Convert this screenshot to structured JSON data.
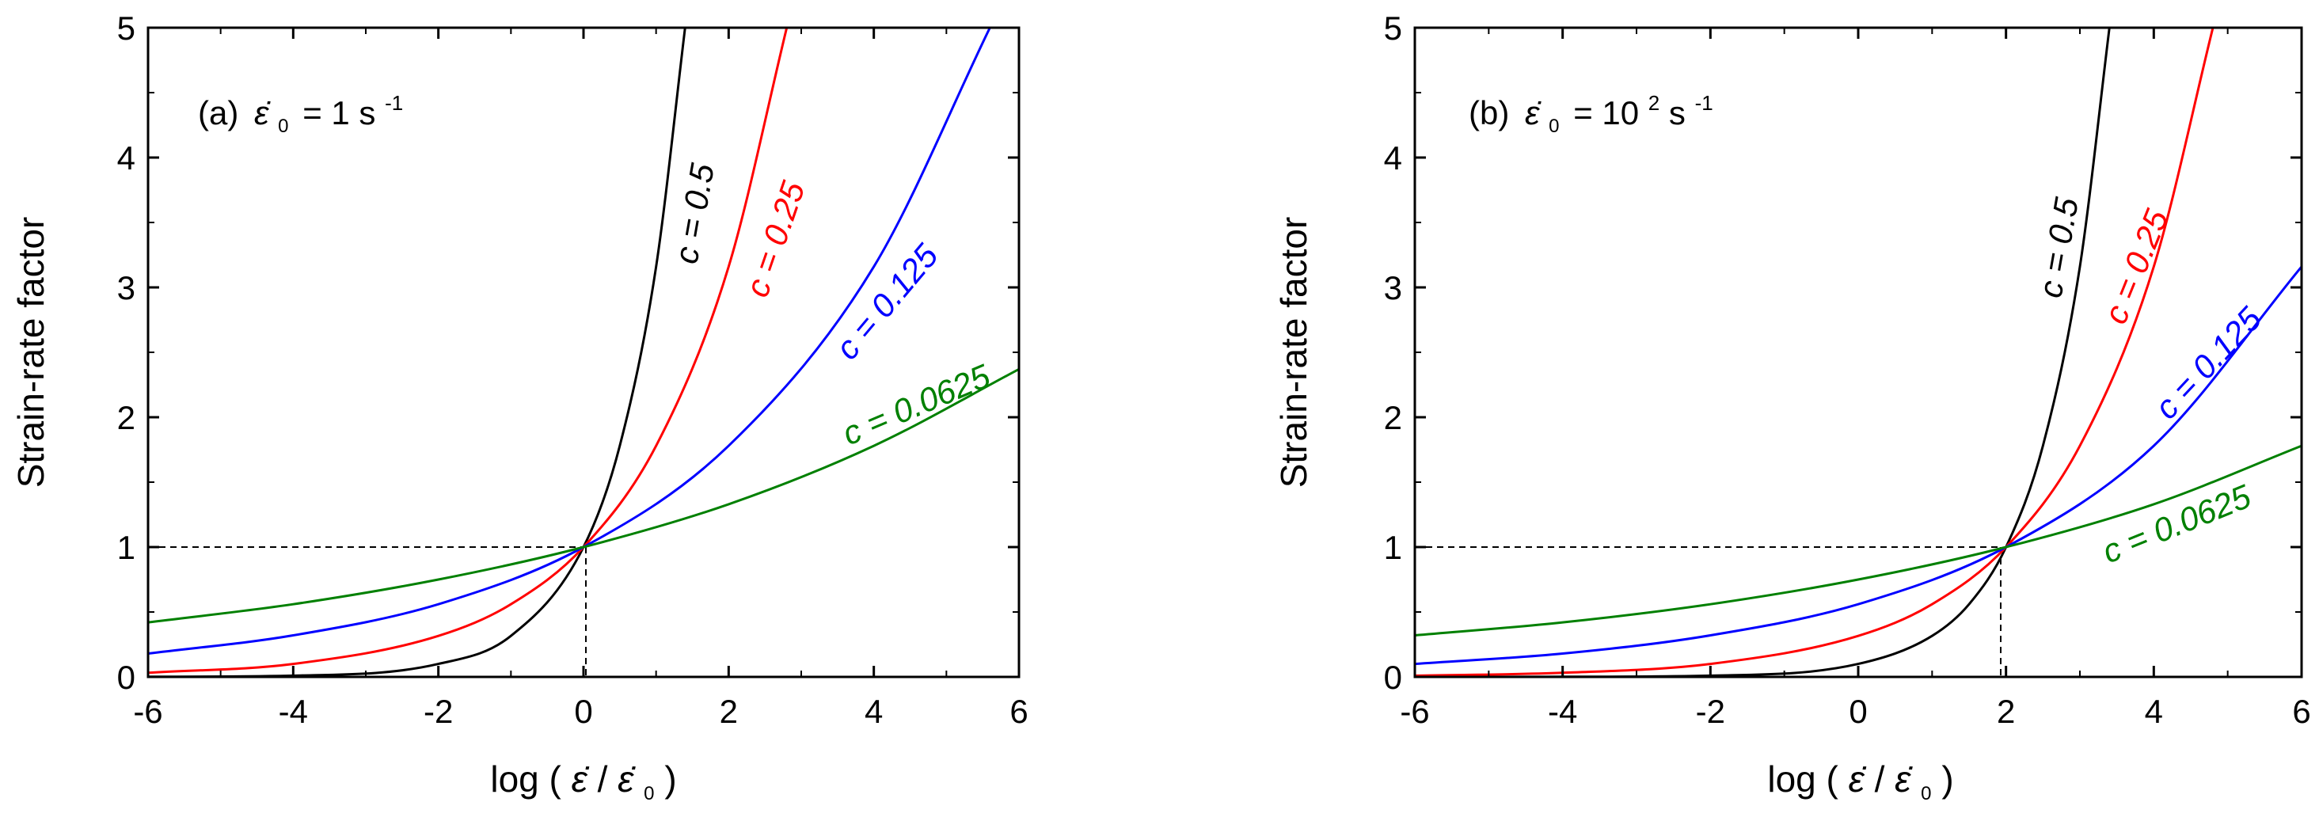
{
  "figure": {
    "colors": {
      "axis": "#000000",
      "ref_line": "#000000"
    },
    "curve_label_prefix": "c = "
  },
  "chart_data": [
    {
      "type": "line",
      "panel_label": "(a)",
      "rate_ref": {
        "symbol": "ε̇",
        "subscript": "0",
        "equals": "= 1 s",
        "superscript": "-1"
      },
      "xlabel": {
        "prefix": "log ( ",
        "num_symbol": "ε̇",
        "divider": " / ",
        "den_symbol": "ε̇",
        "den_subscript": "0",
        "suffix": " )"
      },
      "ylabel": "Strain-rate factor",
      "xlim": [
        -6,
        6
      ],
      "ylim": [
        0,
        5
      ],
      "x_ticks": [
        -6,
        -4,
        -2,
        0,
        2,
        4,
        6
      ],
      "x_tick_labels": [
        "-6",
        "-4",
        "-2",
        "0",
        "2",
        "4",
        "6"
      ],
      "y_ticks": [
        0,
        1,
        2,
        3,
        4,
        5
      ],
      "y_tick_labels": [
        "0",
        "1",
        "2",
        "3",
        "4",
        "5"
      ],
      "x_center": 0,
      "reference": {
        "x": 0,
        "y": 1
      },
      "series": [
        {
          "name": "c = 0.5",
          "c": "0.5",
          "color": "#000000",
          "x": [
            -6,
            -4,
            -2,
            -1,
            0,
            0.5,
            1,
            1.4
          ],
          "y": [
            0.001,
            0.01,
            0.1,
            0.316,
            1,
            1.78,
            3.16,
            5.0
          ]
        },
        {
          "name": "c = 0.25",
          "c": "0.25",
          "color": "#ff0000",
          "x": [
            -6,
            -4,
            -2,
            -1,
            0,
            1,
            2,
            2.8
          ],
          "y": [
            0.032,
            0.1,
            0.316,
            0.56,
            1,
            1.78,
            3.16,
            5.0
          ]
        },
        {
          "name": "c = 0.125",
          "c": "0.125",
          "color": "#0000ff",
          "x": [
            -6,
            -4,
            -2,
            0,
            2,
            4,
            5.6
          ],
          "y": [
            0.18,
            0.32,
            0.56,
            1,
            1.78,
            3.16,
            5.0
          ]
        },
        {
          "name": "c = 0.0625",
          "c": "0.0625",
          "color": "#008000",
          "x": [
            -6,
            -4,
            -2,
            0,
            2,
            4,
            6
          ],
          "y": [
            0.42,
            0.56,
            0.75,
            1,
            1.33,
            1.78,
            2.37
          ]
        }
      ]
    },
    {
      "type": "line",
      "panel_label": "(b)",
      "rate_ref": {
        "symbol": "ε̇",
        "subscript": "0",
        "equals": "= 10",
        "equals_sup": "2",
        "unit": " s",
        "superscript": "-1"
      },
      "xlabel": {
        "prefix": "log ( ",
        "num_symbol": "ε̇",
        "divider": " / ",
        "den_symbol": "ε̇",
        "den_subscript": "0",
        "suffix": ")"
      },
      "ylabel": "Strain-rate factor",
      "xlim": [
        -6,
        6
      ],
      "ylim": [
        0,
        5
      ],
      "x_ticks": [
        -6,
        -4,
        -2,
        0,
        2,
        4,
        6
      ],
      "x_tick_labels": [
        "-6",
        "-4",
        "-2",
        "0",
        "2",
        "4",
        "6"
      ],
      "y_ticks": [
        0,
        1,
        2,
        3,
        4,
        5
      ],
      "y_tick_labels": [
        "0",
        "1",
        "2",
        "3",
        "4",
        "5"
      ],
      "x_center": 2,
      "reference": {
        "x": 2,
        "y": 1
      },
      "series": [
        {
          "name": "c = 0.5",
          "c": "0.5",
          "color": "#000000",
          "x": [
            -6,
            -4,
            -2,
            0,
            1,
            1.5,
            2,
            2.5,
            3,
            3.4
          ],
          "y": [
            0.0001,
            0.001,
            0.01,
            0.1,
            0.316,
            0.56,
            1,
            1.78,
            3.16,
            5.0
          ]
        },
        {
          "name": "c = 0.25",
          "c": "0.25",
          "color": "#ff0000",
          "x": [
            -6,
            -4,
            -2,
            0,
            1,
            2,
            3,
            4,
            4.8
          ],
          "y": [
            0.01,
            0.032,
            0.1,
            0.316,
            0.56,
            1,
            1.78,
            3.16,
            5.0
          ]
        },
        {
          "name": "c = 0.125",
          "c": "0.125",
          "color": "#0000ff",
          "x": [
            -6,
            -4,
            -2,
            0,
            2,
            4,
            6
          ],
          "y": [
            0.1,
            0.18,
            0.32,
            0.56,
            1,
            1.78,
            3.16
          ]
        },
        {
          "name": "c = 0.0625",
          "c": "0.0625",
          "color": "#008000",
          "x": [
            -6,
            -4,
            -2,
            0,
            2,
            4,
            6
          ],
          "y": [
            0.32,
            0.42,
            0.56,
            0.75,
            1,
            1.33,
            1.78
          ]
        }
      ]
    }
  ]
}
